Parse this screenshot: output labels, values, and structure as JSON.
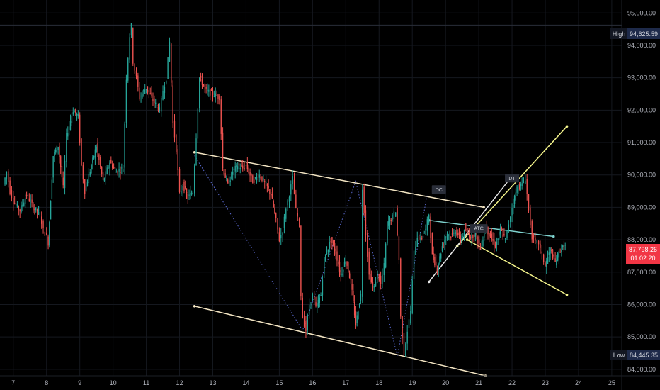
{
  "chart_data": {
    "type": "candlestick",
    "y_range": [
      83800,
      95400
    ],
    "x_range": [
      6.6,
      25.3
    ],
    "y_ticks": [
      "95,000.00",
      "94,000.00",
      "93,000.00",
      "92,000.00",
      "91,000.00",
      "90,000.00",
      "89,000.00",
      "88,000.00",
      "87,000.00",
      "86,000.00",
      "85,000.00",
      "84,000.00"
    ],
    "y_tick_values": [
      95000,
      94000,
      93000,
      92000,
      91000,
      90000,
      89000,
      88000,
      87000,
      86000,
      85000,
      84000
    ],
    "x_ticks": [
      "7",
      "8",
      "9",
      "10",
      "11",
      "12",
      "13",
      "14",
      "15",
      "16",
      "17",
      "18",
      "19",
      "20",
      "21",
      "22",
      "23",
      "24",
      "25"
    ],
    "x_tick_values": [
      7,
      8,
      9,
      10,
      11,
      12,
      13,
      14,
      15,
      16,
      17,
      18,
      19,
      20,
      21,
      22,
      23,
      24,
      25
    ],
    "high": {
      "label": "High",
      "value_text": "94,625.59",
      "value": 94625.59
    },
    "low": {
      "label": "Low",
      "value_text": "84,445.35",
      "value": 84445.35
    },
    "last": {
      "price_text": "87,798.26",
      "countdown": "01:02:20",
      "value": 87798.26
    },
    "price_path": [
      [
        6.7,
        89.7
      ],
      [
        6.8,
        90.1
      ],
      [
        6.9,
        89.5
      ],
      [
        7.0,
        89.2
      ],
      [
        7.2,
        88.9
      ],
      [
        7.4,
        89.4
      ],
      [
        7.6,
        89.0
      ],
      [
        7.8,
        88.8
      ],
      [
        7.9,
        88.3
      ],
      [
        8.0,
        88.1
      ],
      [
        8.05,
        87.9
      ],
      [
        8.2,
        90.6
      ],
      [
        8.35,
        90.9
      ],
      [
        8.5,
        89.6
      ],
      [
        8.6,
        91.2
      ],
      [
        8.8,
        92.0
      ],
      [
        8.95,
        91.8
      ],
      [
        9.05,
        90.3
      ],
      [
        9.15,
        89.5
      ],
      [
        9.35,
        90.3
      ],
      [
        9.5,
        90.9
      ],
      [
        9.7,
        89.8
      ],
      [
        9.9,
        90.4
      ],
      [
        10.1,
        90.1
      ],
      [
        10.3,
        90.2
      ],
      [
        10.4,
        93.0
      ],
      [
        10.5,
        94.3
      ],
      [
        10.55,
        94.6
      ],
      [
        10.6,
        93.5
      ],
      [
        10.7,
        93.0
      ],
      [
        10.8,
        92.4
      ],
      [
        11.0,
        92.7
      ],
      [
        11.2,
        92.3
      ],
      [
        11.4,
        92.0
      ],
      [
        11.5,
        92.6
      ],
      [
        11.6,
        93.0
      ],
      [
        11.7,
        94.1
      ],
      [
        11.8,
        91.6
      ],
      [
        11.9,
        90.8
      ],
      [
        12.0,
        89.4
      ],
      [
        12.1,
        89.7
      ],
      [
        12.25,
        89.3
      ],
      [
        12.4,
        89.5
      ],
      [
        12.5,
        91.2
      ],
      [
        12.6,
        93.0
      ],
      [
        12.8,
        92.6
      ],
      [
        13.0,
        92.5
      ],
      [
        13.2,
        92.4
      ],
      [
        13.3,
        90.2
      ],
      [
        13.45,
        89.7
      ],
      [
        13.6,
        90.1
      ],
      [
        13.75,
        90.3
      ],
      [
        13.9,
        90.2
      ],
      [
        14.0,
        90.3
      ],
      [
        14.2,
        89.8
      ],
      [
        14.4,
        90.0
      ],
      [
        14.6,
        89.7
      ],
      [
        14.75,
        89.4
      ],
      [
        14.9,
        88.6
      ],
      [
        15.0,
        88.0
      ],
      [
        15.1,
        88.3
      ],
      [
        15.2,
        89.0
      ],
      [
        15.3,
        89.4
      ],
      [
        15.4,
        89.9
      ],
      [
        15.5,
        88.9
      ],
      [
        15.6,
        88.5
      ],
      [
        15.65,
        86.3
      ],
      [
        15.7,
        85.6
      ],
      [
        15.8,
        85.2
      ],
      [
        15.9,
        86.0
      ],
      [
        16.0,
        86.3
      ],
      [
        16.1,
        85.9
      ],
      [
        16.25,
        86.3
      ],
      [
        16.35,
        87.4
      ],
      [
        16.55,
        88.0
      ],
      [
        16.7,
        87.6
      ],
      [
        16.85,
        86.9
      ],
      [
        17.0,
        87.4
      ],
      [
        17.15,
        86.7
      ],
      [
        17.3,
        85.4
      ],
      [
        17.45,
        86.3
      ],
      [
        17.5,
        89.6
      ],
      [
        17.6,
        88.2
      ],
      [
        17.7,
        86.9
      ],
      [
        17.85,
        86.5
      ],
      [
        17.95,
        87.0
      ],
      [
        18.05,
        86.6
      ],
      [
        18.15,
        87.2
      ],
      [
        18.25,
        88.5
      ],
      [
        18.4,
        88.7
      ],
      [
        18.5,
        88.9
      ],
      [
        18.6,
        87.4
      ],
      [
        18.65,
        85.6
      ],
      [
        18.75,
        84.5
      ],
      [
        18.85,
        85.2
      ],
      [
        18.95,
        85.8
      ],
      [
        19.05,
        87.6
      ],
      [
        19.15,
        88.1
      ],
      [
        19.25,
        88.0
      ],
      [
        19.4,
        88.3
      ],
      [
        19.5,
        88.8
      ],
      [
        19.6,
        87.5
      ],
      [
        19.75,
        87.1
      ],
      [
        19.9,
        87.8
      ],
      [
        20.05,
        88.2
      ],
      [
        20.2,
        88.1
      ],
      [
        20.3,
        88.3
      ],
      [
        20.45,
        88.0
      ],
      [
        20.6,
        88.3
      ],
      [
        20.75,
        88.1
      ],
      [
        20.9,
        88.2
      ],
      [
        21.05,
        87.7
      ],
      [
        21.2,
        88.4
      ],
      [
        21.35,
        88.1
      ],
      [
        21.5,
        87.8
      ],
      [
        21.65,
        88.3
      ],
      [
        21.8,
        88.0
      ],
      [
        21.9,
        88.5
      ],
      [
        22.0,
        89.0
      ],
      [
        22.15,
        89.6
      ],
      [
        22.3,
        89.7
      ],
      [
        22.4,
        89.9
      ],
      [
        22.5,
        88.9
      ],
      [
        22.6,
        88.1
      ],
      [
        22.7,
        87.9
      ],
      [
        22.8,
        87.9
      ],
      [
        22.9,
        87.5
      ],
      [
        23.0,
        87.2
      ],
      [
        23.15,
        87.7
      ],
      [
        23.3,
        87.3
      ],
      [
        23.45,
        87.7
      ],
      [
        23.6,
        87.8
      ]
    ],
    "trendlines": [
      {
        "color": "#f3e5c3",
        "points": [
          [
            12.45,
            90.7
          ],
          [
            21.15,
            89.0
          ]
        ]
      },
      {
        "color": "#f3e5c3",
        "points": [
          [
            12.45,
            85.95
          ],
          [
            21.2,
            83.8
          ]
        ]
      },
      {
        "color": "#7fd3cf",
        "points": [
          [
            19.5,
            88.6
          ],
          [
            23.25,
            88.1
          ]
        ]
      },
      {
        "color": "#f5f58c",
        "points": [
          [
            20.65,
            88.0
          ],
          [
            23.65,
            86.3
          ]
        ]
      },
      {
        "color": "#f5f58c",
        "points": [
          [
            20.35,
            87.8
          ],
          [
            23.65,
            91.5
          ]
        ]
      },
      {
        "color": "#e8e8e8",
        "points": [
          [
            19.5,
            86.7
          ],
          [
            21.95,
            89.9
          ]
        ]
      }
    ],
    "zigzag": [
      [
        12.45,
        90.6
      ],
      [
        15.7,
        85.2
      ],
      [
        17.3,
        89.8
      ],
      [
        18.55,
        84.4
      ],
      [
        19.45,
        89.4
      ]
    ],
    "annotations": [
      {
        "text": "DC",
        "x": 19.8,
        "y": 89.55
      },
      {
        "text": "ATC",
        "x": 21.0,
        "y": 88.35
      },
      {
        "text": "DT",
        "x": 22.0,
        "y": 89.9
      }
    ],
    "colors": {
      "up": "#26a69a",
      "down": "#ef5350",
      "tag_blue": "#1e2a4a",
      "last_red": "#f23645"
    }
  }
}
